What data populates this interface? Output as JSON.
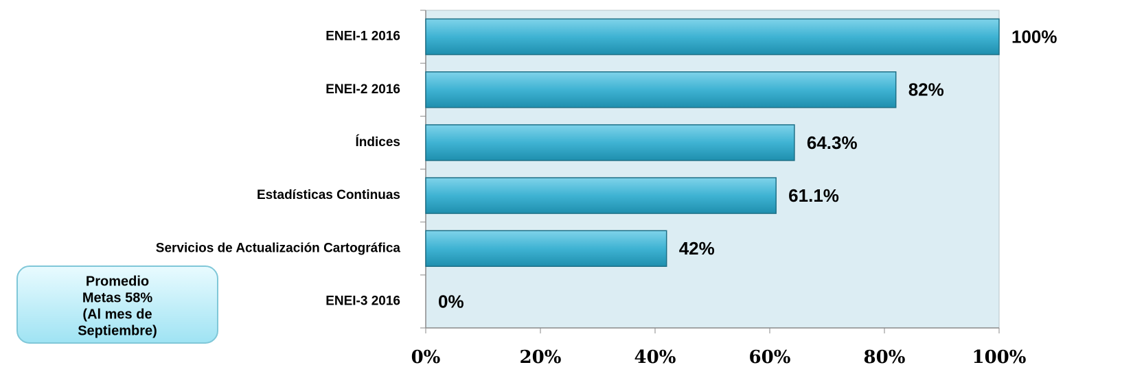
{
  "chart_data": {
    "type": "bar",
    "orientation": "horizontal",
    "categories": [
      "ENEI-1 2016",
      "ENEI-2 2016",
      "Índices",
      "Estadísticas Continuas",
      "Servicios de Actualización  Cartográfica",
      "ENEI-3 2016"
    ],
    "values": [
      100,
      82,
      64.3,
      61.1,
      42,
      0
    ],
    "value_labels": [
      "100%",
      "82%",
      "64.3%",
      "61.1%",
      "42%",
      "0%"
    ],
    "color": "#3fb3d3",
    "xlim": [
      0,
      100
    ],
    "xticks": [
      {
        "value": 0,
        "label": "0%"
      },
      {
        "value": 20,
        "label": "20%"
      },
      {
        "value": 40,
        "label": "40%"
      },
      {
        "value": 60,
        "label": "60%"
      },
      {
        "value": 80,
        "label": "80%"
      },
      {
        "value": 100,
        "label": "100%"
      }
    ],
    "annotation": [
      "Promedio",
      "Metas  58%",
      "(Al mes de",
      "Septiembre)"
    ]
  }
}
